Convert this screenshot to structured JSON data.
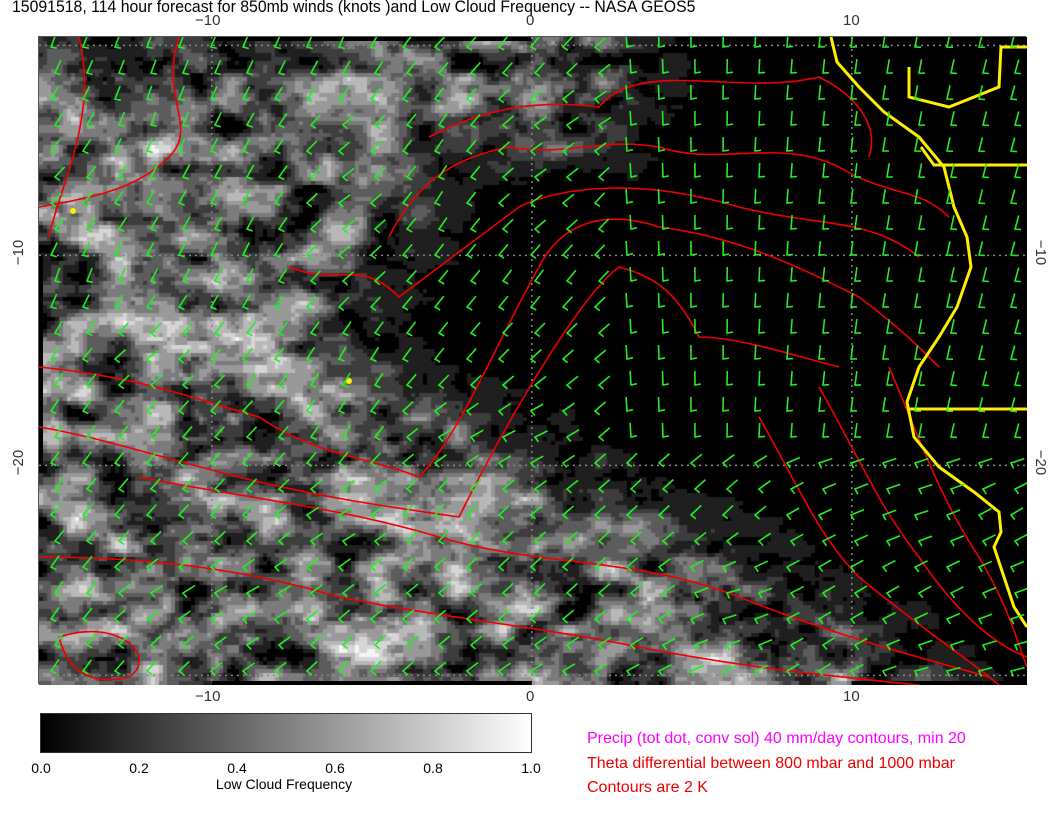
{
  "title": "15091518, 114 hour forecast for 850mb winds (knots )and Low Cloud Frequency -- NASA GEOS5",
  "map": {
    "lon_ticks": [
      "−10",
      "0",
      "10"
    ],
    "lat_ticks": [
      "−10",
      "−20"
    ],
    "lon_range": [
      -15.4,
      15.4
    ],
    "lat_range": [
      0.4,
      -30.5
    ],
    "colors": {
      "wind_barbs": "#22ee22",
      "theta_contours": "#ee0000",
      "coastline": "#ffee00",
      "precip": "#ff00ff"
    }
  },
  "colorbar": {
    "ticks": [
      "0.0",
      "0.2",
      "0.4",
      "0.6",
      "0.8",
      "1.0"
    ],
    "label": "Low Cloud Frequency",
    "range": [
      0,
      1
    ],
    "colors": [
      "#000000",
      "#ffffff"
    ]
  },
  "legend": {
    "precip": "Precip (tot dot, conv sol) 40 mm/day contours, min 20",
    "theta": "Theta differential between 800 mbar and 1000 mbar",
    "contours": "Contours are 2 K"
  }
}
